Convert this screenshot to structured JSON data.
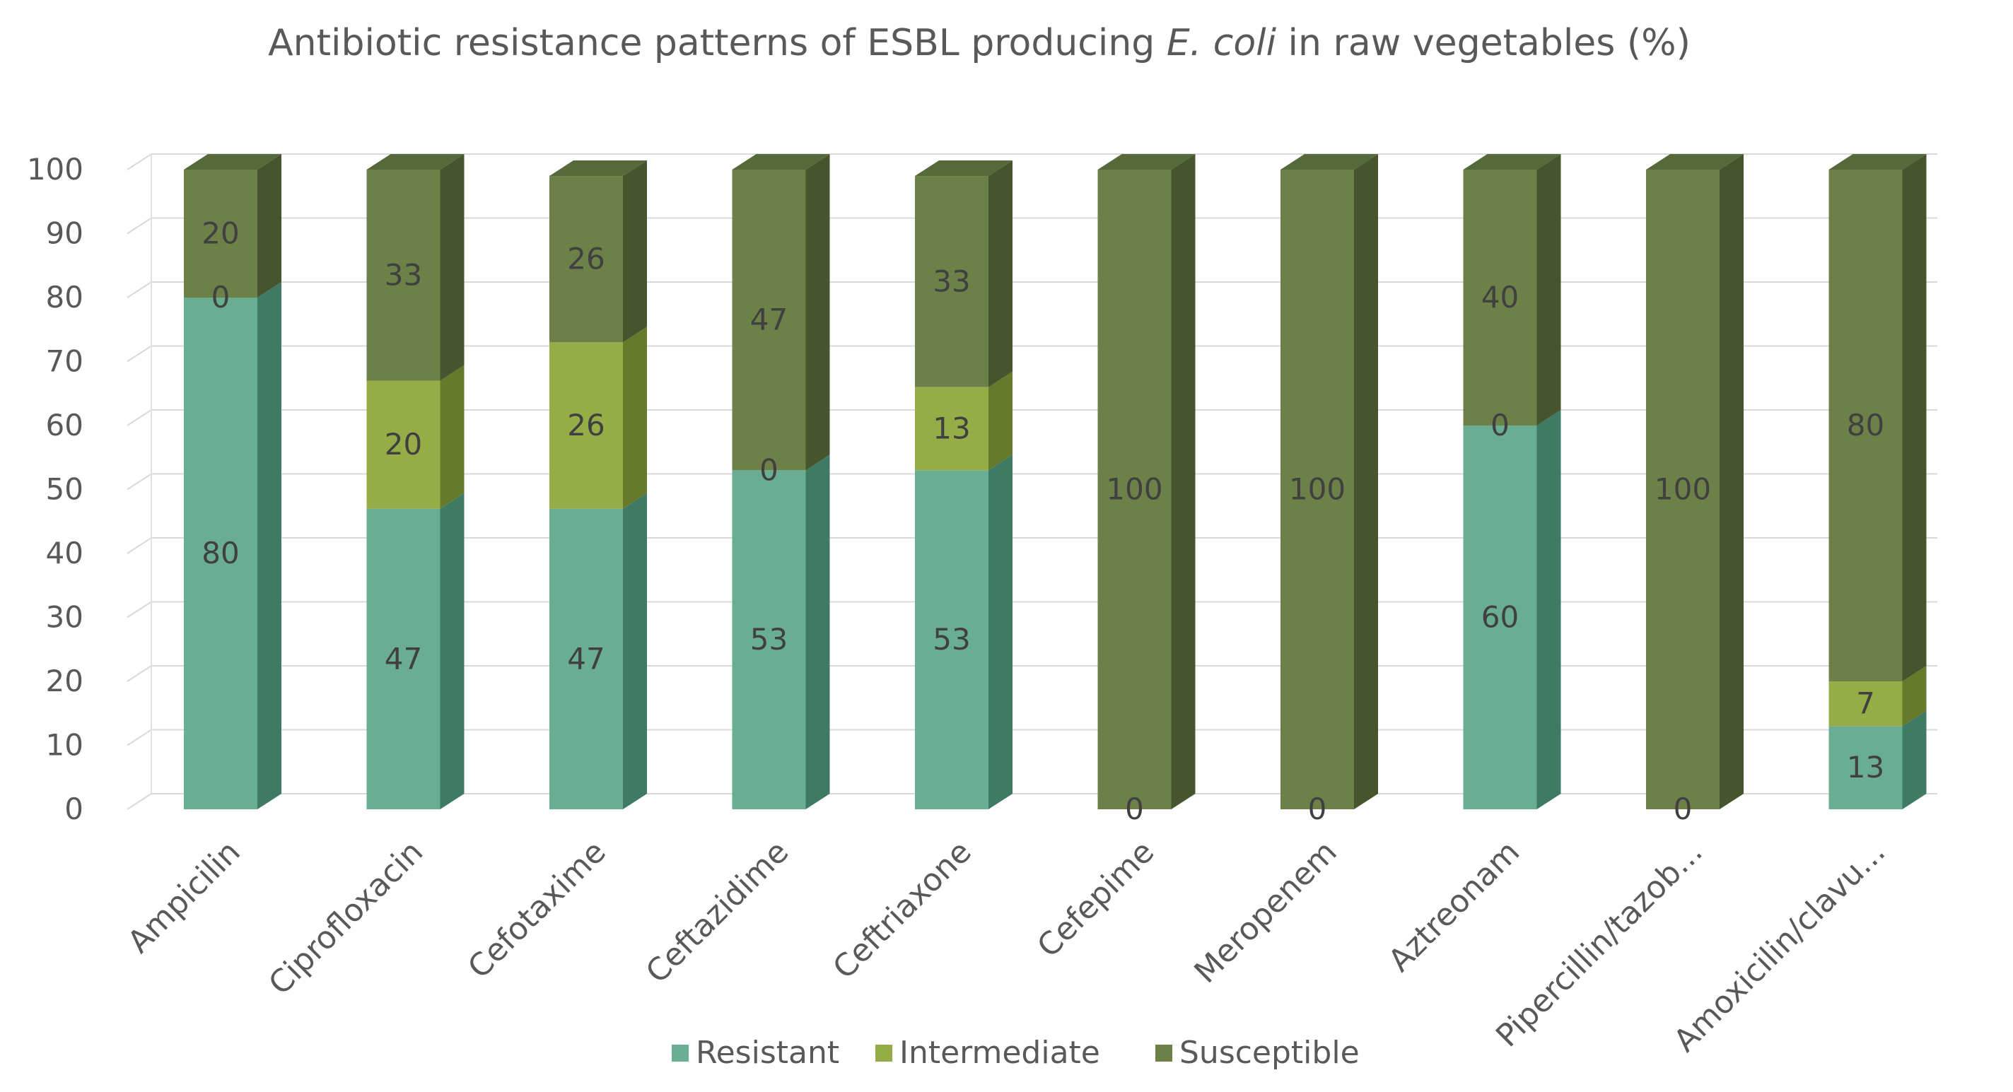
{
  "chart_data": {
    "type": "bar",
    "stacked": true,
    "style": "3d-column",
    "title": "Antibiotic resistance patterns of ESBL producing E. coli in raw vegetables (%)",
    "title_parts": [
      {
        "text": "Antibiotic resistance patterns of ESBL producing ",
        "italic": false
      },
      {
        "text": "E. coli",
        "italic": true
      },
      {
        "text": " in raw vegetables (%)",
        "italic": false
      }
    ],
    "xlabel": "",
    "ylabel": "",
    "ylim": [
      0,
      100
    ],
    "yticks": [
      0,
      10,
      20,
      30,
      40,
      50,
      60,
      70,
      80,
      90,
      100
    ],
    "grid": true,
    "legend_position": "bottom",
    "categories": [
      "Ampicilin",
      "Ciprofloxacin",
      "Cefotaxime",
      "Ceftazidime",
      "Ceftriaxone",
      "Cefepime",
      "Meropenem",
      "Aztreonam",
      "Pipercillin/tazob...",
      "Amoxicilin/clavu..."
    ],
    "series": [
      {
        "name": "Resistant",
        "color": "#69ae93",
        "side_color": "#3f7a64",
        "top_color": "#83c1a8",
        "values": [
          80,
          47,
          47,
          53,
          53,
          0,
          0,
          60,
          0,
          13
        ]
      },
      {
        "name": "Intermediate",
        "color": "#96ad47",
        "side_color": "#677a2b",
        "top_color": "#abc25e",
        "values": [
          0,
          20,
          26,
          0,
          13,
          null,
          null,
          0,
          null,
          7
        ]
      },
      {
        "name": "Susceptible",
        "color": "#6c8048",
        "side_color": "#46552d",
        "top_color": "#56693a",
        "values": [
          20,
          33,
          26,
          47,
          33,
          100,
          100,
          40,
          100,
          80
        ]
      }
    ]
  }
}
